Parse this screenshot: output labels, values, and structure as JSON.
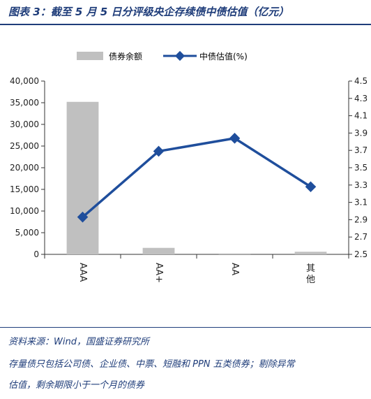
{
  "header": {
    "title": "图表 3：截至 5 月 5 日分评级央企存续债中债估值（亿元）"
  },
  "footer": {
    "source": "资料来源：Wind，国盛证券研究所",
    "note_line1": "存量债只包括公司债、企业债、中票、短融和 PPN 五类债券；剔除异常",
    "note_line2": "估值，剩余期限小于一个月的债券"
  },
  "colors": {
    "bar": "#c0c0c0",
    "line": "#1f4e9c",
    "text": "#222222",
    "accent": "#1f3d7a"
  },
  "chart_data": {
    "type": "bar",
    "categories": [
      "AAA",
      "AA+",
      "AA",
      "其他"
    ],
    "series": [
      {
        "name": "债券余额",
        "type": "bar",
        "axis": "left",
        "values": [
          35200,
          1500,
          200,
          600
        ]
      },
      {
        "name": "中债估值(%)",
        "type": "line",
        "axis": "right",
        "values": [
          2.93,
          3.69,
          3.84,
          3.28
        ]
      }
    ],
    "y_left": {
      "ticks": [
        "0",
        "5,000",
        "10,000",
        "15,000",
        "20,000",
        "25,000",
        "30,000",
        "35,000",
        "40,000"
      ],
      "min": 0,
      "max": 40000
    },
    "y_right": {
      "ticks": [
        "2.5",
        "2.7",
        "2.9",
        "3.1",
        "3.3",
        "3.5",
        "3.7",
        "3.9",
        "4.1",
        "4.3",
        "4.5"
      ],
      "min": 2.5,
      "max": 4.5
    },
    "legend_position": "top",
    "grid": false
  }
}
